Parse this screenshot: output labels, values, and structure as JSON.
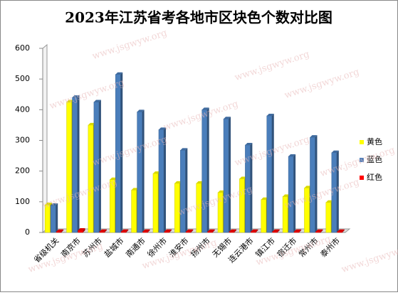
{
  "chart_data": {
    "type": "bar",
    "title": "2023年江苏省考各地市区块色个数对比图",
    "categories": [
      "省级机关",
      "南京市",
      "苏州市",
      "盐城市",
      "南通市",
      "徐州市",
      "淮安市",
      "扬州市",
      "无锡市",
      "连云港市",
      "镇江市",
      "宿迁市",
      "常州市",
      "泰州市"
    ],
    "series": [
      {
        "name": "黄色",
        "color": "#ffff00",
        "values": [
          90,
          425,
          350,
          172,
          138,
          192,
          160,
          160,
          130,
          175,
          107,
          117,
          145,
          98
        ]
      },
      {
        "name": "蓝色",
        "color": "#4a7ebb",
        "values": [
          88,
          440,
          425,
          515,
          393,
          335,
          268,
          400,
          370,
          285,
          380,
          248,
          310,
          260
        ]
      },
      {
        "name": "红色",
        "color": "#ff0000",
        "values": [
          3,
          7,
          3,
          3,
          3,
          3,
          3,
          3,
          3,
          3,
          3,
          3,
          3,
          3
        ]
      }
    ],
    "ylim": [
      0,
      600
    ],
    "yticks": [
      0,
      100,
      200,
      300,
      400,
      500,
      600
    ],
    "grid": false,
    "legend": "right",
    "watermark": "www.jsgwyw.org"
  }
}
